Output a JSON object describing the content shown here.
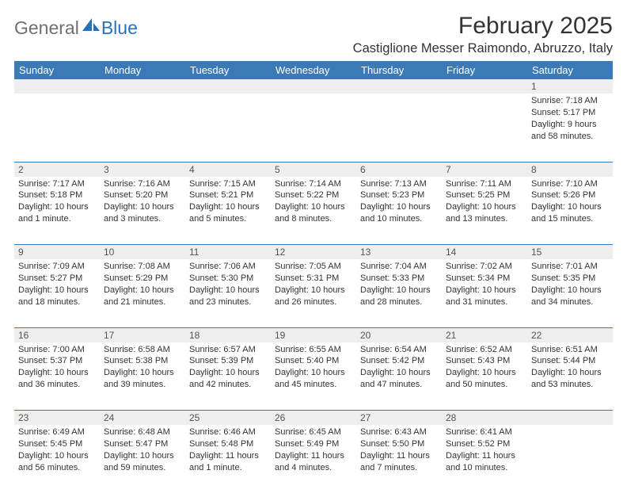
{
  "colors": {
    "header_bg": "#3b79b7",
    "header_text": "#ffffff",
    "daynum_bg": "#eeeeee",
    "daynum_text": "#555555",
    "body_text": "#333333",
    "logo_gray": "#6f6f6f",
    "logo_blue": "#2a70b8",
    "page_bg": "#ffffff"
  },
  "logo": {
    "part1": "General",
    "part2": "Blue"
  },
  "title": "February 2025",
  "location": "Castiglione Messer Raimondo, Abruzzo, Italy",
  "weekdays": [
    "Sunday",
    "Monday",
    "Tuesday",
    "Wednesday",
    "Thursday",
    "Friday",
    "Saturday"
  ],
  "weeks": [
    [
      null,
      null,
      null,
      null,
      null,
      null,
      {
        "n": "1",
        "sr": "Sunrise: 7:18 AM",
        "ss": "Sunset: 5:17 PM",
        "d1": "Daylight: 9 hours",
        "d2": "and 58 minutes."
      }
    ],
    [
      {
        "n": "2",
        "sr": "Sunrise: 7:17 AM",
        "ss": "Sunset: 5:18 PM",
        "d1": "Daylight: 10 hours",
        "d2": "and 1 minute."
      },
      {
        "n": "3",
        "sr": "Sunrise: 7:16 AM",
        "ss": "Sunset: 5:20 PM",
        "d1": "Daylight: 10 hours",
        "d2": "and 3 minutes."
      },
      {
        "n": "4",
        "sr": "Sunrise: 7:15 AM",
        "ss": "Sunset: 5:21 PM",
        "d1": "Daylight: 10 hours",
        "d2": "and 5 minutes."
      },
      {
        "n": "5",
        "sr": "Sunrise: 7:14 AM",
        "ss": "Sunset: 5:22 PM",
        "d1": "Daylight: 10 hours",
        "d2": "and 8 minutes."
      },
      {
        "n": "6",
        "sr": "Sunrise: 7:13 AM",
        "ss": "Sunset: 5:23 PM",
        "d1": "Daylight: 10 hours",
        "d2": "and 10 minutes."
      },
      {
        "n": "7",
        "sr": "Sunrise: 7:11 AM",
        "ss": "Sunset: 5:25 PM",
        "d1": "Daylight: 10 hours",
        "d2": "and 13 minutes."
      },
      {
        "n": "8",
        "sr": "Sunrise: 7:10 AM",
        "ss": "Sunset: 5:26 PM",
        "d1": "Daylight: 10 hours",
        "d2": "and 15 minutes."
      }
    ],
    [
      {
        "n": "9",
        "sr": "Sunrise: 7:09 AM",
        "ss": "Sunset: 5:27 PM",
        "d1": "Daylight: 10 hours",
        "d2": "and 18 minutes."
      },
      {
        "n": "10",
        "sr": "Sunrise: 7:08 AM",
        "ss": "Sunset: 5:29 PM",
        "d1": "Daylight: 10 hours",
        "d2": "and 21 minutes."
      },
      {
        "n": "11",
        "sr": "Sunrise: 7:06 AM",
        "ss": "Sunset: 5:30 PM",
        "d1": "Daylight: 10 hours",
        "d2": "and 23 minutes."
      },
      {
        "n": "12",
        "sr": "Sunrise: 7:05 AM",
        "ss": "Sunset: 5:31 PM",
        "d1": "Daylight: 10 hours",
        "d2": "and 26 minutes."
      },
      {
        "n": "13",
        "sr": "Sunrise: 7:04 AM",
        "ss": "Sunset: 5:33 PM",
        "d1": "Daylight: 10 hours",
        "d2": "and 28 minutes."
      },
      {
        "n": "14",
        "sr": "Sunrise: 7:02 AM",
        "ss": "Sunset: 5:34 PM",
        "d1": "Daylight: 10 hours",
        "d2": "and 31 minutes."
      },
      {
        "n": "15",
        "sr": "Sunrise: 7:01 AM",
        "ss": "Sunset: 5:35 PM",
        "d1": "Daylight: 10 hours",
        "d2": "and 34 minutes."
      }
    ],
    [
      {
        "n": "16",
        "sr": "Sunrise: 7:00 AM",
        "ss": "Sunset: 5:37 PM",
        "d1": "Daylight: 10 hours",
        "d2": "and 36 minutes."
      },
      {
        "n": "17",
        "sr": "Sunrise: 6:58 AM",
        "ss": "Sunset: 5:38 PM",
        "d1": "Daylight: 10 hours",
        "d2": "and 39 minutes."
      },
      {
        "n": "18",
        "sr": "Sunrise: 6:57 AM",
        "ss": "Sunset: 5:39 PM",
        "d1": "Daylight: 10 hours",
        "d2": "and 42 minutes."
      },
      {
        "n": "19",
        "sr": "Sunrise: 6:55 AM",
        "ss": "Sunset: 5:40 PM",
        "d1": "Daylight: 10 hours",
        "d2": "and 45 minutes."
      },
      {
        "n": "20",
        "sr": "Sunrise: 6:54 AM",
        "ss": "Sunset: 5:42 PM",
        "d1": "Daylight: 10 hours",
        "d2": "and 47 minutes."
      },
      {
        "n": "21",
        "sr": "Sunrise: 6:52 AM",
        "ss": "Sunset: 5:43 PM",
        "d1": "Daylight: 10 hours",
        "d2": "and 50 minutes."
      },
      {
        "n": "22",
        "sr": "Sunrise: 6:51 AM",
        "ss": "Sunset: 5:44 PM",
        "d1": "Daylight: 10 hours",
        "d2": "and 53 minutes."
      }
    ],
    [
      {
        "n": "23",
        "sr": "Sunrise: 6:49 AM",
        "ss": "Sunset: 5:45 PM",
        "d1": "Daylight: 10 hours",
        "d2": "and 56 minutes."
      },
      {
        "n": "24",
        "sr": "Sunrise: 6:48 AM",
        "ss": "Sunset: 5:47 PM",
        "d1": "Daylight: 10 hours",
        "d2": "and 59 minutes."
      },
      {
        "n": "25",
        "sr": "Sunrise: 6:46 AM",
        "ss": "Sunset: 5:48 PM",
        "d1": "Daylight: 11 hours",
        "d2": "and 1 minute."
      },
      {
        "n": "26",
        "sr": "Sunrise: 6:45 AM",
        "ss": "Sunset: 5:49 PM",
        "d1": "Daylight: 11 hours",
        "d2": "and 4 minutes."
      },
      {
        "n": "27",
        "sr": "Sunrise: 6:43 AM",
        "ss": "Sunset: 5:50 PM",
        "d1": "Daylight: 11 hours",
        "d2": "and 7 minutes."
      },
      {
        "n": "28",
        "sr": "Sunrise: 6:41 AM",
        "ss": "Sunset: 5:52 PM",
        "d1": "Daylight: 11 hours",
        "d2": "and 10 minutes."
      },
      null
    ]
  ]
}
